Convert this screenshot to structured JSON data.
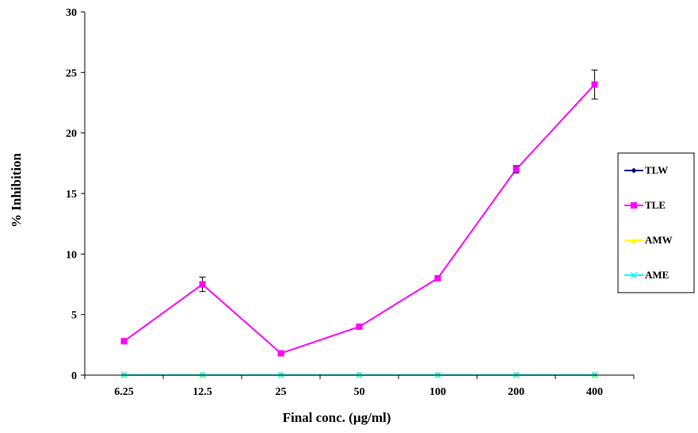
{
  "chart_data": {
    "type": "line",
    "xlabel": "Final conc. (µg/ml)",
    "ylabel": "% Inhibition",
    "categories": [
      "6.25",
      "12.5",
      "25",
      "50",
      "100",
      "200",
      "400"
    ],
    "ylim": [
      0,
      30
    ],
    "yticks": [
      0,
      5,
      10,
      15,
      20,
      25,
      30
    ],
    "legend_position": "right",
    "grid": false,
    "series": [
      {
        "name": "TLW",
        "values": [
          0,
          0,
          0,
          0,
          0,
          0,
          0
        ],
        "color": "#000080",
        "marker": "diamond",
        "errors": [
          0,
          0,
          0,
          0,
          0,
          0,
          0
        ]
      },
      {
        "name": "TLE",
        "values": [
          2.8,
          7.5,
          1.8,
          4.0,
          8.0,
          17.0,
          24.0
        ],
        "color": "#ff00ff",
        "marker": "square",
        "errors": [
          0,
          0.6,
          0,
          0,
          0,
          0.3,
          1.2
        ]
      },
      {
        "name": "AMW",
        "values": [
          0,
          0,
          0,
          0,
          0,
          0,
          0
        ],
        "color": "#ffff00",
        "marker": "triangle",
        "errors": [
          0,
          0,
          0,
          0,
          0,
          0,
          0
        ]
      },
      {
        "name": "AME",
        "values": [
          0,
          0,
          0,
          0,
          0,
          0,
          0
        ],
        "color": "#00ffff",
        "marker": "x",
        "errors": [
          0,
          0,
          0,
          0,
          0,
          0,
          0
        ]
      }
    ]
  }
}
